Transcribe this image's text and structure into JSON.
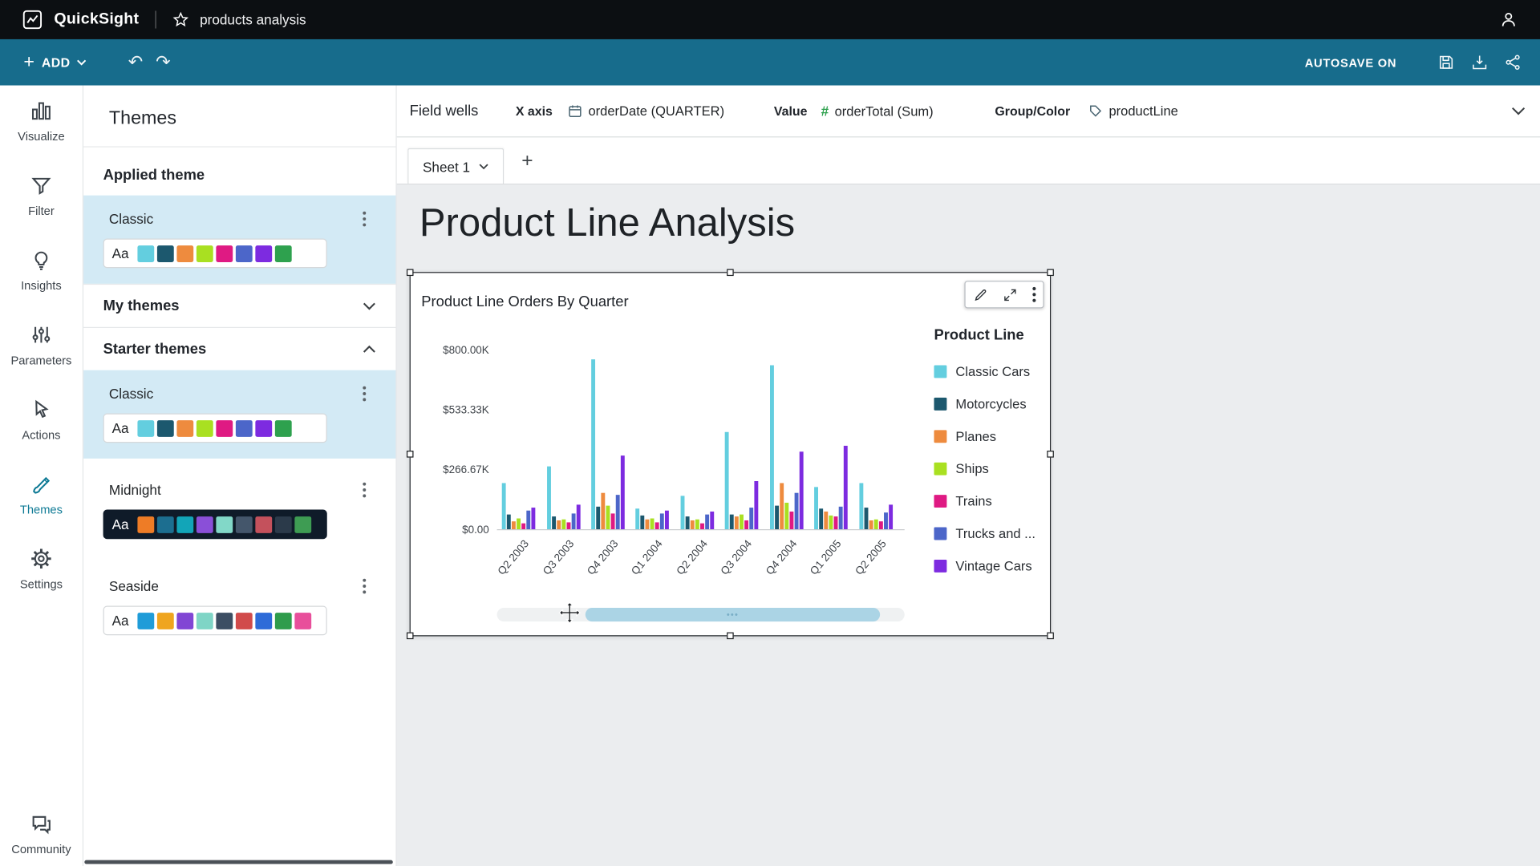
{
  "topbar": {
    "app_name": "QuickSight",
    "doc_name": "products analysis"
  },
  "toolbar": {
    "add_label": "ADD",
    "autosave_label": "AUTOSAVE ON"
  },
  "sidebar": {
    "items": [
      {
        "label": "Visualize"
      },
      {
        "label": "Filter"
      },
      {
        "label": "Insights"
      },
      {
        "label": "Parameters"
      },
      {
        "label": "Actions"
      },
      {
        "label": "Themes"
      },
      {
        "label": "Settings"
      }
    ],
    "community_label": "Community",
    "active_item": "Themes"
  },
  "themes_panel": {
    "title": "Themes",
    "applied_section_label": "Applied theme",
    "my_themes_label": "My themes",
    "starter_themes_label": "Starter themes",
    "sample_text": "Aa",
    "applied_theme": {
      "name": "Classic",
      "colors": [
        "#63CEDF",
        "#1C586E",
        "#EE8B3E",
        "#A9E021",
        "#DF1A83",
        "#4C66C9",
        "#7D2BE0",
        "#2EA14E"
      ]
    },
    "starter_themes": [
      {
        "name": "Classic",
        "variant": "light",
        "colors": [
          "#63CEDF",
          "#1C586E",
          "#EE8B3E",
          "#A9E021",
          "#DF1A83",
          "#4C66C9",
          "#7D2BE0",
          "#2EA14E"
        ]
      },
      {
        "name": "Midnight",
        "variant": "dark",
        "colors": [
          "#EE7C26",
          "#1C6E90",
          "#12A5B8",
          "#8A4FD8",
          "#82D8C8",
          "#44566B",
          "#C4515C",
          "#2B3A4A",
          "#3E9C53"
        ]
      },
      {
        "name": "Seaside",
        "variant": "seaside",
        "colors": [
          "#1F9CD8",
          "#EFA51F",
          "#8146D4",
          "#7FD5C6",
          "#3C4E63",
          "#D14B4B",
          "#2E6BD8",
          "#2F9C4C",
          "#E84F9B"
        ]
      }
    ]
  },
  "field_wells": {
    "label": "Field wells",
    "x_axis_label": "X axis",
    "x_axis_field": "orderDate (QUARTER)",
    "value_label": "Value",
    "value_field": "orderTotal (Sum)",
    "group_label": "Group/Color",
    "group_field": "productLine",
    "hash_glyph": "#"
  },
  "sheet_bar": {
    "active_tab": "Sheet 1"
  },
  "canvas": {
    "page_title": "Product Line Analysis"
  },
  "visual": {
    "title": "Product Line Orders By Quarter",
    "legend_title": "Product Line"
  },
  "chart_data": {
    "type": "bar",
    "title": "Product Line Orders By Quarter",
    "categories": [
      "Q2 2003",
      "Q3 2003",
      "Q4 2003",
      "Q1 2004",
      "Q2 2004",
      "Q3 2004",
      "Q4 2004",
      "Q1 2005",
      "Q2 2005"
    ],
    "series": [
      {
        "name": "Classic Cars",
        "color": "#63CEDF",
        "values": [
          205,
          280,
          755,
          90,
          150,
          435,
          730,
          190,
          205
        ]
      },
      {
        "name": "Motorcycles",
        "color": "#1C586E",
        "values": [
          65,
          55,
          100,
          60,
          55,
          65,
          105,
          90,
          95
        ]
      },
      {
        "name": "Planes",
        "color": "#EE8B3E",
        "values": [
          35,
          40,
          160,
          45,
          40,
          55,
          205,
          80,
          40
        ]
      },
      {
        "name": "Ships",
        "color": "#A9E021",
        "values": [
          50,
          45,
          105,
          50,
          45,
          65,
          120,
          60,
          45
        ]
      },
      {
        "name": "Trains",
        "color": "#DF1A83",
        "values": [
          25,
          30,
          70,
          30,
          25,
          40,
          80,
          55,
          35
        ]
      },
      {
        "name": "Trucks and ...",
        "color": "#4C66C9",
        "values": [
          85,
          70,
          155,
          70,
          65,
          95,
          160,
          100,
          75
        ]
      },
      {
        "name": "Vintage Cars",
        "color": "#7D2BE0",
        "values": [
          95,
          110,
          330,
          85,
          80,
          215,
          345,
          370,
          110
        ]
      }
    ],
    "y_ticks": [
      "$800.00K",
      "$533.33K",
      "$266.67K",
      "$0.00"
    ],
    "ylim": [
      0,
      800
    ],
    "value_unit": "thousand USD",
    "legend_title": "Product Line",
    "legend_position": "right",
    "grid": false
  }
}
